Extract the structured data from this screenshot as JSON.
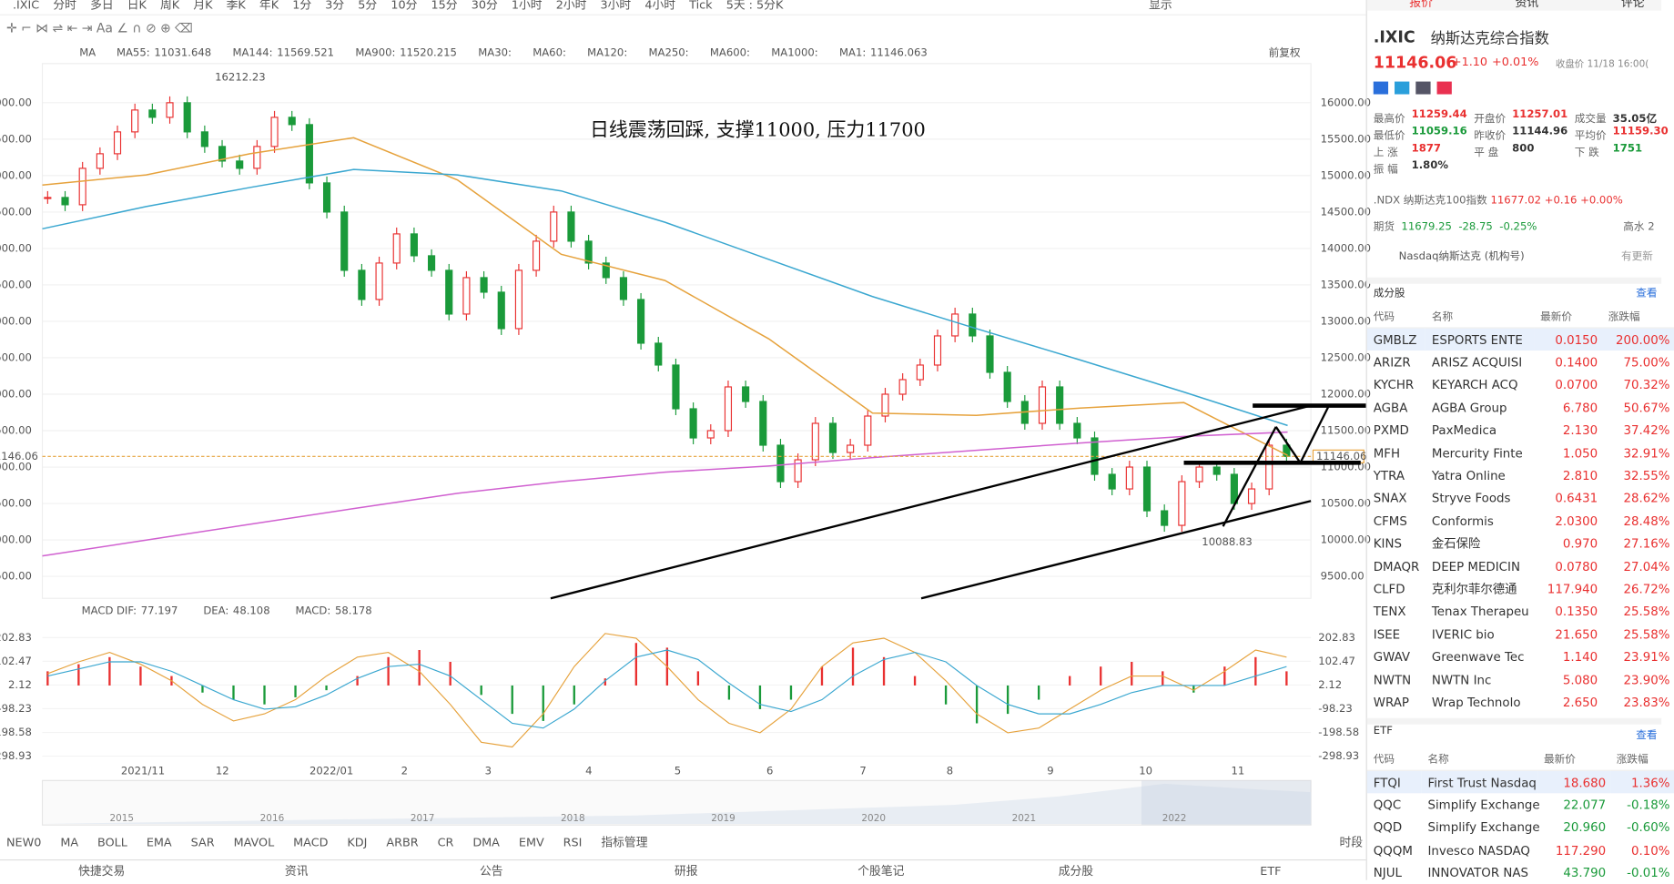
{
  "toolbar": {
    "periods": [
      ".IXIC",
      "分时",
      "多日",
      "日K",
      "周K",
      "月K",
      "季K",
      "年K",
      "1分",
      "3分",
      "5分",
      "10分",
      "15分",
      "30分",
      "1小时",
      "2小时",
      "3小时",
      "4小时",
      "Tick",
      "5天 : 5分K"
    ],
    "active": 3,
    "display": "显示"
  },
  "ma_legend": {
    "title": "MA",
    "items": [
      {
        "name": "MA55:",
        "value": 11031.648,
        "color": "#e6a23c"
      },
      {
        "name": "MA144:",
        "value": 11569.521,
        "color": "#3aa7d0"
      },
      {
        "name": "MA900:",
        "value": 11520.215,
        "color": "#d060d0"
      },
      {
        "name": "MA30:",
        "color": "#c8d8f0"
      },
      {
        "name": "MA60:",
        "color": "#c8d8f0"
      },
      {
        "name": "MA120:",
        "color": "#f0c8c8"
      },
      {
        "name": "MA250:",
        "color": "#c8d8f0"
      },
      {
        "name": "MA600:",
        "color": "#f0dcb0"
      },
      {
        "name": "MA1000:",
        "color": "#c8d8f0"
      },
      {
        "name": "MA1:",
        "value": 11146.063,
        "color": "#333333"
      }
    ],
    "adjust": "前复权"
  },
  "price_chart": {
    "annotation": "日线震荡回踩, 支撑11000, 压力11700",
    "high_label": "16212.23",
    "low_label": "10088.83",
    "last": 11146.06,
    "ylim": [
      9198,
      16538
    ],
    "yticks": [
      {
        "value": 16000,
        "label": "16000.00"
      },
      {
        "value": 15500,
        "label": "15500.00"
      },
      {
        "value": 15000,
        "label": "15000.00"
      },
      {
        "value": 14500,
        "label": "14500.00"
      },
      {
        "value": 14000,
        "label": "14000.00"
      },
      {
        "value": 13500,
        "label": "13500.00"
      },
      {
        "value": 13000,
        "label": "13000.00"
      },
      {
        "value": 12500,
        "label": "12500.00"
      },
      {
        "value": 12000,
        "label": "12000.00"
      },
      {
        "value": 11500,
        "label": "11500.00"
      },
      {
        "value": 11000,
        "label": "11000.00"
      },
      {
        "value": 10500,
        "label": "10500.00"
      },
      {
        "value": 10000,
        "label": "10000.00"
      },
      {
        "value": 9500,
        "label": "9500.00"
      }
    ],
    "closes": [
      14700,
      14600,
      15100,
      15300,
      15600,
      15900,
      15800,
      16000,
      15600,
      15400,
      15200,
      15100,
      15400,
      15800,
      15700,
      14900,
      14500,
      13700,
      13300,
      13800,
      14200,
      13900,
      13700,
      13100,
      13600,
      13400,
      12900,
      13700,
      14100,
      14500,
      14100,
      13800,
      13600,
      13300,
      12700,
      12400,
      11800,
      11400,
      11500,
      12100,
      11900,
      11300,
      10800,
      11100,
      11600,
      11200,
      11300,
      11700,
      12000,
      12200,
      12400,
      12800,
      13100,
      12800,
      12300,
      11900,
      11600,
      12100,
      11600,
      11400,
      10900,
      10700,
      11000,
      10400,
      10200,
      10800,
      11000,
      10900,
      10500,
      10700,
      11300,
      11146
    ],
    "ma_lines": [
      {
        "name": "MA55",
        "color": "#e6a23c",
        "values": [
          14870,
          15010,
          15300,
          15520,
          14940,
          13920,
          13560,
          12760,
          11740,
          11710,
          11810,
          11885,
          11160
        ]
      },
      {
        "name": "MA144",
        "color": "#3aa7d0",
        "values": [
          14270,
          14575,
          14837,
          15084,
          15010,
          14790,
          14360,
          13850,
          13340,
          12900,
          12470,
          12030,
          11570
        ]
      },
      {
        "name": "MA900",
        "color": "#d060d0",
        "values": [
          9780,
          9997,
          10215,
          10430,
          10640,
          10800,
          10930,
          11015,
          11130,
          11230,
          11330,
          11420,
          11480
        ]
      }
    ]
  },
  "macd": {
    "title": "MACD",
    "items": [
      {
        "name": "DIF:",
        "value": 77.197,
        "color": "#e6a23c"
      },
      {
        "name": "DEA:",
        "value": 48.108,
        "color": "#3aa7d0"
      },
      {
        "name": "MACD:",
        "value": 58.178,
        "color": "#d060d0"
      }
    ],
    "ylim": [
      -325.8,
      256.6
    ],
    "yticks": [
      202.83,
      102.47,
      2.12,
      -98.23,
      -198.58,
      -298.93
    ],
    "hist": [
      60,
      90,
      120,
      80,
      40,
      -30,
      -60,
      -80,
      -50,
      -20,
      40,
      120,
      150,
      100,
      -40,
      -120,
      -150,
      -80,
      30,
      180,
      160,
      60,
      -60,
      -100,
      -60,
      80,
      160,
      120,
      40,
      -80,
      -160,
      -120,
      -60,
      40,
      80,
      100,
      60,
      -30,
      80,
      120,
      60
    ],
    "dif": [
      50,
      100,
      140,
      90,
      20,
      -80,
      -150,
      -120,
      -60,
      40,
      120,
      140,
      60,
      -80,
      -240,
      -260,
      -120,
      80,
      220,
      200,
      80,
      -60,
      -160,
      -200,
      -100,
      80,
      180,
      200,
      140,
      20,
      -120,
      -200,
      -180,
      -100,
      -20,
      40,
      40,
      -20,
      60,
      150,
      120
    ],
    "dea": [
      40,
      70,
      100,
      100,
      60,
      0,
      -60,
      -100,
      -90,
      -40,
      30,
      80,
      90,
      40,
      -60,
      -160,
      -180,
      -100,
      20,
      120,
      150,
      110,
      10,
      -80,
      -110,
      -60,
      40,
      110,
      140,
      100,
      0,
      -80,
      -120,
      -120,
      -80,
      -30,
      0,
      0,
      0,
      40,
      80
    ]
  },
  "x_labels": [
    "2021/11",
    "12",
    "2022/01",
    "2",
    "3",
    "4",
    "5",
    "6",
    "7",
    "8",
    "9",
    "10",
    "11"
  ],
  "navigator_years": [
    "2015",
    "2016",
    "2017",
    "2018",
    "2019",
    "2020",
    "2021",
    "2022"
  ],
  "indicators": [
    "NEW0",
    "MA",
    "BOLL",
    "EMA",
    "SAR",
    "MAVOL",
    "MACD",
    "KDJ",
    "ARBR",
    "CR",
    "DMA",
    "EMV",
    "RSI",
    "指标管理"
  ],
  "period_btn": "时段",
  "bottom_bar": [
    "快捷交易",
    "资讯",
    "公告",
    "研报",
    "个股笔记",
    "成分股",
    "ETF"
  ],
  "panel": {
    "tabs": [
      "报价",
      "资讯",
      "评论"
    ],
    "code": ".IXIC",
    "name": "纳斯达克综合指数",
    "price": "11146.06",
    "change": "+1.10",
    "pct": "+0.01%",
    "close_time": "收盘价 11/18 16:00(",
    "stats": [
      [
        "最高价",
        "11259.44",
        "开盘价",
        "11257.01",
        "成交量",
        "35.05亿"
      ],
      [
        "最低价",
        "11059.16",
        "昨收价",
        "11144.96",
        "平均价",
        "11159.30"
      ],
      [
        "上 涨",
        "1877",
        "平 盘",
        "800",
        "下 跌",
        "1751"
      ],
      [
        "振 幅",
        "1.80%"
      ]
    ],
    "ndx": {
      "name": ".NDX 纳斯达克100指数",
      "price": "11677.02",
      "change": "+0.16",
      "pct": "+0.00%"
    },
    "futures": {
      "label": "期货",
      "price": "11679.25",
      "change": "-28.75",
      "pct": "-0.25%",
      "premium": "高水 2"
    },
    "feed": {
      "name": "Nasdaq纳斯达克 (机构号)",
      "status": "有更新"
    },
    "constituents": {
      "title": "成分股",
      "more": "查看",
      "headers": [
        "代码",
        "名称",
        "最新价",
        "涨跌幅"
      ],
      "rows": [
        [
          "GMBLZ",
          "ESPORTS ENTE",
          "0.0150",
          "200.00%"
        ],
        [
          "ARIZR",
          "ARISZ ACQUISI",
          "0.1400",
          "75.00%"
        ],
        [
          "KYCHR",
          "KEYARCH ACQ",
          "0.0700",
          "70.32%"
        ],
        [
          "AGBA",
          "AGBA Group",
          "6.780",
          "50.67%"
        ],
        [
          "PXMD",
          "PaxMedica",
          "2.130",
          "37.42%"
        ],
        [
          "MFH",
          "Mercurity Finte",
          "1.050",
          "32.91%"
        ],
        [
          "YTRA",
          "Yatra Online",
          "2.810",
          "32.55%"
        ],
        [
          "SNAX",
          "Stryve Foods",
          "0.6431",
          "28.62%"
        ],
        [
          "CFMS",
          "Conformis",
          "2.0300",
          "28.48%"
        ],
        [
          "KINS",
          "金石保险",
          "0.970",
          "27.16%"
        ],
        [
          "DMAQR",
          "DEEP MEDICIN",
          "0.0780",
          "27.04%"
        ],
        [
          "CLFD",
          "克利尔菲尔德通",
          "117.940",
          "26.72%"
        ],
        [
          "TENX",
          "Tenax Therapeu",
          "0.1350",
          "25.58%"
        ],
        [
          "ISEE",
          "IVERIC bio",
          "21.650",
          "25.58%"
        ],
        [
          "GWAV",
          "Greenwave Tec",
          "1.140",
          "23.91%"
        ],
        [
          "NWTN",
          "NWTN Inc",
          "5.080",
          "23.90%"
        ],
        [
          "WRAP",
          "Wrap Technolo",
          "2.650",
          "23.83%"
        ]
      ]
    },
    "etf": {
      "title": "ETF",
      "more": "查看",
      "headers": [
        "代码",
        "名称",
        "最新价",
        "涨跌幅"
      ],
      "rows": [
        [
          "FTQI",
          "First Trust Nasdaq",
          "18.680",
          "1.36%"
        ],
        [
          "QQC",
          "Simplify Exchange",
          "22.077",
          "-0.18%"
        ],
        [
          "QQD",
          "Simplify Exchange",
          "20.960",
          "-0.60%"
        ],
        [
          "QQQM",
          "Invesco NASDAQ",
          "117.290",
          "0.10%"
        ],
        [
          "NJUL",
          "INNOVATOR NAS",
          "43.790",
          "-0.01%"
        ]
      ]
    }
  }
}
